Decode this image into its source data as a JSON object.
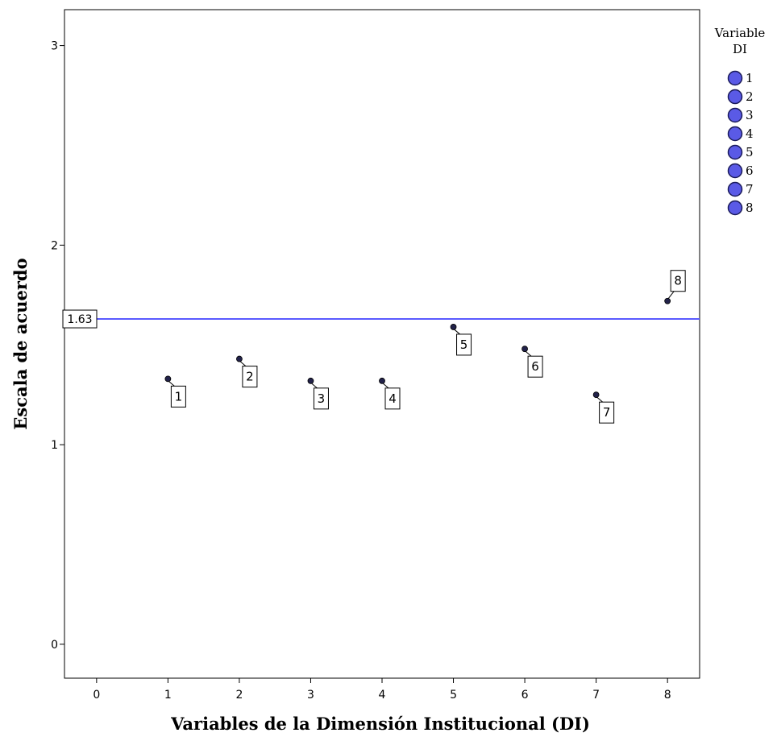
{
  "chart_data": {
    "type": "scatter",
    "xlabel": "Variables de la Dimensión Institucional (DI)",
    "ylabel": "Escala de acuerdo",
    "xlim": [
      -0.45,
      8.45
    ],
    "ylim": [
      -0.17,
      3.18
    ],
    "xticks": [
      "0",
      "1",
      "2",
      "3",
      "4",
      "5",
      "6",
      "7",
      "8"
    ],
    "yticks": [
      "0",
      "1",
      "2",
      "3"
    ],
    "reference_line": {
      "y": 1.63,
      "label": "1.63",
      "color": "#5a5aff"
    },
    "points": [
      {
        "x": 1,
        "y": 1.33,
        "label": "1"
      },
      {
        "x": 2,
        "y": 1.43,
        "label": "2"
      },
      {
        "x": 3,
        "y": 1.32,
        "label": "3"
      },
      {
        "x": 4,
        "y": 1.32,
        "label": "4"
      },
      {
        "x": 5,
        "y": 1.59,
        "label": "5"
      },
      {
        "x": 6,
        "y": 1.48,
        "label": "6"
      },
      {
        "x": 7,
        "y": 1.25,
        "label": "7"
      },
      {
        "x": 8,
        "y": 1.72,
        "label": "8"
      }
    ],
    "legend": {
      "title_line1": "Variable",
      "title_line2": "DI",
      "entries": [
        "1",
        "2",
        "3",
        "4",
        "5",
        "6",
        "7",
        "8"
      ],
      "placement": "right"
    },
    "colors": {
      "marker_fill": "#5a5ae6",
      "marker_stroke": "#1a1a5a",
      "point_fill": "#22224a"
    }
  }
}
